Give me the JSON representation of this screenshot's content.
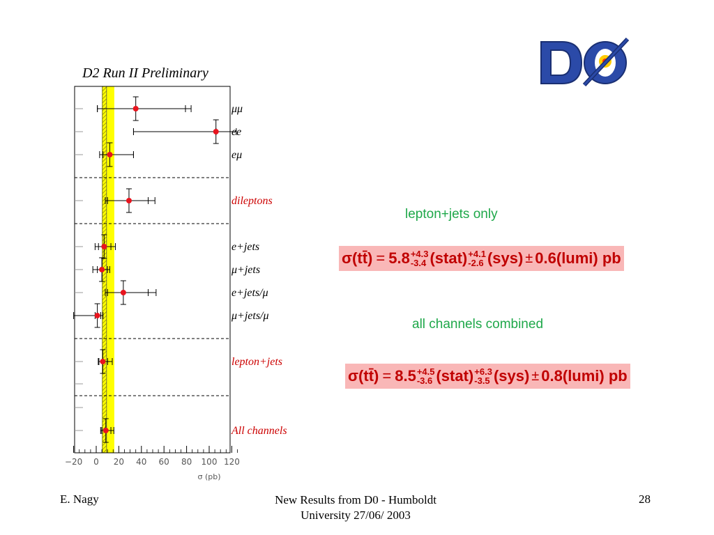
{
  "slide": {
    "plot_title": "D2 Run II Preliminary",
    "logo_text": "DØ",
    "footer_left": "E. Nagy",
    "footer_center_line1": "New Results from D0 - Humboldt",
    "footer_center_line2": "University  27/06/ 2003",
    "footer_right": "28"
  },
  "results": [
    {
      "heading": "lepton+jets only",
      "lhs": "σ(tt̄)",
      "value": "5.8",
      "stat_plus": "+4.3",
      "stat_minus": "-3.4",
      "stat_label": "(stat)",
      "sys_plus": "+4.1",
      "sys_minus": "-2.6",
      "sys_label": "(sys)",
      "lumi": "0.6(lumi) pb"
    },
    {
      "heading": "all channels combined",
      "lhs": "σ(tt̄)",
      "value": "8.5",
      "stat_plus": "+4.5",
      "stat_minus": "-3.6",
      "stat_label": "(stat)",
      "sys_plus": "+6.3",
      "sys_minus": "-3.5",
      "sys_label": "(sys)",
      "lumi": "0.8(lumi) pb"
    }
  ],
  "chart_data": {
    "type": "scatter",
    "title": "D2 Run II Preliminary",
    "xlabel": "σ (pb)",
    "xlim": [
      -20,
      130
    ],
    "x_ticks": [
      "−20",
      "0",
      "20",
      "40",
      "60",
      "80",
      "100",
      "120"
    ],
    "band": {
      "low": 5,
      "high": 16,
      "color": "#ffff00",
      "hatch_center": 7.3
    },
    "marker_color": "#e8141e",
    "channels": [
      {
        "name": "μμ",
        "color": "#000000",
        "value": 35,
        "stat_low": 1,
        "stat_high": 79,
        "tot_low": 1,
        "tot_high": 84
      },
      {
        "name": "ee",
        "color": "#000000",
        "value": 106,
        "stat_low": 33,
        "stat_high": 106,
        "tot_low": 33,
        "tot_high": 124
      },
      {
        "name": "eμ",
        "color": "#000000",
        "value": 12,
        "stat_low": 6,
        "stat_high": 33,
        "tot_low": 3,
        "tot_high": 33
      },
      {
        "name": "dileptons",
        "color": "#cc0000",
        "value": 29,
        "stat_low": 10,
        "stat_high": 46,
        "tot_low": 8,
        "tot_high": 52
      },
      {
        "name": "e+jets",
        "color": "#000000",
        "value": 7,
        "stat_low": 2,
        "stat_high": 13,
        "tot_low": -1,
        "tot_high": 17
      },
      {
        "name": "μ+jets",
        "color": "#000000",
        "value": 5,
        "stat_low": 1,
        "stat_high": 10,
        "tot_low": -3,
        "tot_high": 12
      },
      {
        "name": "e+jets/μ",
        "color": "#000000",
        "value": 24,
        "stat_low": 10,
        "stat_high": 46,
        "tot_low": 8,
        "tot_high": 53
      },
      {
        "name": "μ+jets/μ",
        "color": "#000000",
        "value": 1,
        "stat_low": -1,
        "stat_high": 4,
        "tot_low": -20,
        "tot_high": 6
      },
      {
        "name": "lepton+jets",
        "color": "#cc0000",
        "value": 5.8,
        "stat_low": 2.4,
        "stat_high": 10.1,
        "tot_low": 1.8,
        "tot_high": 14.2
      },
      {
        "name": "All channels",
        "color": "#cc0000",
        "value": 8.5,
        "stat_low": 4.9,
        "stat_high": 13.0,
        "tot_low": 3.9,
        "tot_high": 15.6
      }
    ]
  }
}
